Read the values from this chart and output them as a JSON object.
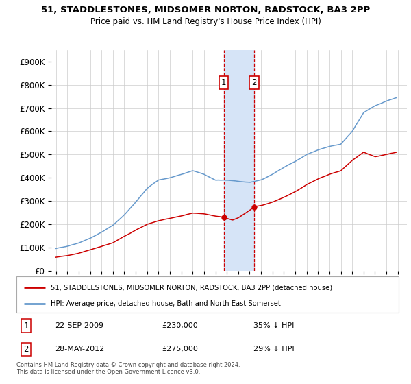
{
  "title": "51, STADDLESTONES, MIDSOMER NORTON, RADSTOCK, BA3 2PP",
  "subtitle": "Price paid vs. HM Land Registry's House Price Index (HPI)",
  "red_label": "51, STADDLESTONES, MIDSOMER NORTON, RADSTOCK, BA3 2PP (detached house)",
  "blue_label": "HPI: Average price, detached house, Bath and North East Somerset",
  "transaction1": {
    "num": "1",
    "date": "22-SEP-2009",
    "price": "£230,000",
    "pct": "35% ↓ HPI",
    "year": 2009.72
  },
  "transaction2": {
    "num": "2",
    "date": "28-MAY-2012",
    "price": "£275,000",
    "pct": "29% ↓ HPI",
    "year": 2012.4
  },
  "copyright": "Contains HM Land Registry data © Crown copyright and database right 2024.\nThis data is licensed under the Open Government Licence v3.0.",
  "ylim": [
    0,
    950000
  ],
  "yticks": [
    0,
    100000,
    200000,
    300000,
    400000,
    500000,
    600000,
    700000,
    800000,
    900000
  ],
  "ytick_labels": [
    "£0",
    "£100K",
    "£200K",
    "£300K",
    "£400K",
    "£500K",
    "£600K",
    "£700K",
    "£800K",
    "£900K"
  ],
  "xmin": 1994.6,
  "xmax": 2025.8,
  "highlight_color": "#d6e4f7",
  "red_color": "#cc0000",
  "blue_color": "#6699cc",
  "t1_price": 230000,
  "t2_price": 275000
}
